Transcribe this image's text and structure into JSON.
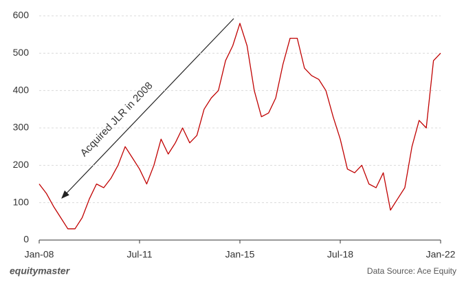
{
  "chart_data": {
    "type": "line",
    "annotation": "Acquired JLR in 2008",
    "source": "Data Source: Ace Equity",
    "brand": "equitymaster",
    "color": "#c00000",
    "x": [
      "Jan-08",
      "Apr-08",
      "Jul-08",
      "Oct-08",
      "Jan-09",
      "Apr-09",
      "Jul-09",
      "Oct-09",
      "Jan-10",
      "Apr-10",
      "Jul-10",
      "Oct-10",
      "Jan-11",
      "Apr-11",
      "Jul-11",
      "Oct-11",
      "Jan-12",
      "Apr-12",
      "Jul-12",
      "Oct-12",
      "Jan-13",
      "Apr-13",
      "Jul-13",
      "Oct-13",
      "Jan-14",
      "Apr-14",
      "Jul-14",
      "Oct-14",
      "Jan-15",
      "Apr-15",
      "Jul-15",
      "Oct-15",
      "Jan-16",
      "Apr-16",
      "Jul-16",
      "Oct-16",
      "Jan-17",
      "Apr-17",
      "Jul-17",
      "Oct-17",
      "Jan-18",
      "Apr-18",
      "Jul-18",
      "Oct-18",
      "Jan-19",
      "Apr-19",
      "Jul-19",
      "Oct-19",
      "Jan-20",
      "Apr-20",
      "Jul-20",
      "Oct-20",
      "Jan-21",
      "Apr-21",
      "Jul-21",
      "Oct-21",
      "Jan-22"
    ],
    "values": [
      150,
      125,
      90,
      60,
      30,
      30,
      60,
      110,
      150,
      140,
      165,
      200,
      250,
      220,
      190,
      150,
      200,
      270,
      230,
      260,
      300,
      260,
      280,
      350,
      380,
      400,
      480,
      520,
      580,
      520,
      400,
      330,
      340,
      380,
      470,
      540,
      540,
      460,
      440,
      430,
      400,
      330,
      270,
      190,
      180,
      200,
      150,
      140,
      180,
      80,
      110,
      140,
      250,
      320,
      300,
      480,
      500
    ],
    "xticks": [
      "Jan-08",
      "Jul-11",
      "Jan-15",
      "Jul-18",
      "Jan-22"
    ],
    "ylim": [
      0,
      600
    ],
    "yticks": [
      0,
      100,
      200,
      300,
      400,
      500,
      600
    ],
    "grid": true
  }
}
